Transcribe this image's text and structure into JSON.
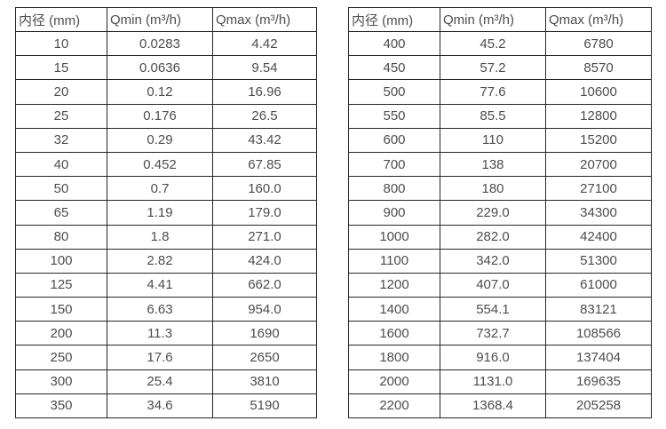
{
  "colors": {
    "background": "#ffffff",
    "border": "#262626",
    "text": "#4d4d4d"
  },
  "tables": [
    {
      "name": "small-diameter-flow-table",
      "headers": [
        "内径 (mm)",
        "Qmin (m³/h)",
        "Qmax (m³/h)"
      ],
      "rows": [
        [
          "10",
          "0.0283",
          "4.42"
        ],
        [
          "15",
          "0.0636",
          "9.54"
        ],
        [
          "20",
          "0.12",
          "16.96"
        ],
        [
          "25",
          "0.176",
          "26.5"
        ],
        [
          "32",
          "0.29",
          "43.42"
        ],
        [
          "40",
          "0.452",
          "67.85"
        ],
        [
          "50",
          "0.7",
          "160.0"
        ],
        [
          "65",
          "1.19",
          "179.0"
        ],
        [
          "80",
          "1.8",
          "271.0"
        ],
        [
          "100",
          "2.82",
          "424.0"
        ],
        [
          "125",
          "4.41",
          "662.0"
        ],
        [
          "150",
          "6.63",
          "954.0"
        ],
        [
          "200",
          "11.3",
          "1690"
        ],
        [
          "250",
          "17.6",
          "2650"
        ],
        [
          "300",
          "25.4",
          "3810"
        ],
        [
          "350",
          "34.6",
          "5190"
        ]
      ]
    },
    {
      "name": "large-diameter-flow-table",
      "headers": [
        "内径 (mm)",
        "Qmin (m³/h)",
        "Qmax (m³/h)"
      ],
      "rows": [
        [
          "400",
          "45.2",
          "6780"
        ],
        [
          "450",
          "57.2",
          "8570"
        ],
        [
          "500",
          "77.6",
          "10600"
        ],
        [
          "550",
          "85.5",
          "12800"
        ],
        [
          "600",
          "110",
          "15200"
        ],
        [
          "700",
          "138",
          "20700"
        ],
        [
          "800",
          "180",
          "27100"
        ],
        [
          "900",
          "229.0",
          "34300"
        ],
        [
          "1000",
          "282.0",
          "42400"
        ],
        [
          "1100",
          "342.0",
          "51300"
        ],
        [
          "1200",
          "407.0",
          "61000"
        ],
        [
          "1400",
          "554.1",
          "83121"
        ],
        [
          "1600",
          "732.7",
          "108566"
        ],
        [
          "1800",
          "916.0",
          "137404"
        ],
        [
          "2000",
          "1131.0",
          "169635"
        ],
        [
          "2200",
          "1368.4",
          "205258"
        ]
      ]
    }
  ]
}
